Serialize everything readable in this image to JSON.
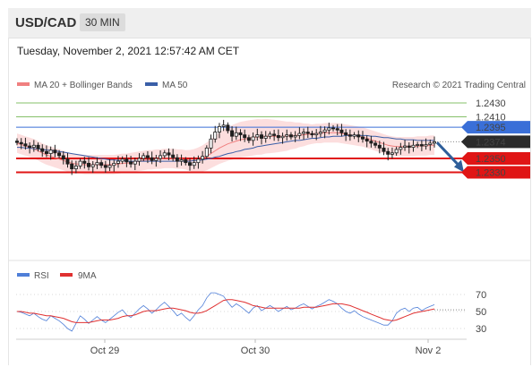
{
  "header": {
    "symbol": "USD/CAD",
    "interval": "30 MIN"
  },
  "timestamp": "Tuesday, November 2, 2021 12:57:42 AM CET",
  "legend": {
    "ma20_bb": "MA 20 + Bollinger Bands",
    "ma50": "MA 50",
    "credit": "Research © 2021 Trading Central",
    "rsi": "RSI",
    "ma9": "9MA"
  },
  "colors": {
    "ma20": "#f08080",
    "ma50": "#3a5fa8",
    "band": "#fbd3d3",
    "resistance_green": "#86c06a",
    "blue_level": "#3a6fd8",
    "support_red": "#e01515",
    "current": "#2b2b2b",
    "candle": "#1f1f1f",
    "rsi": "#4f7fd8",
    "rsi_ma": "#e03030",
    "arrow": "#2f5f9a"
  },
  "chart_data": [
    {
      "type": "candlestick",
      "title": "",
      "ylim": [
        0.2324,
        1.2438
      ],
      "levels": [
        {
          "value": 1.243,
          "label": "1.2430",
          "style": "green-line"
        },
        {
          "value": 1.241,
          "label": "1.2410",
          "style": "green-line"
        },
        {
          "value": 1.2395,
          "label": "1.2395",
          "style": "blue-box"
        },
        {
          "value": 1.2374,
          "label": "1.2374",
          "style": "current-box"
        },
        {
          "value": 1.235,
          "label": "1.2350",
          "style": "red-box"
        },
        {
          "value": 1.233,
          "label": "1.2330",
          "style": "red-box"
        }
      ],
      "close": [
        1.2373,
        1.2371,
        1.2368,
        1.2366,
        1.2369,
        1.2364,
        1.236,
        1.2357,
        1.2362,
        1.2358,
        1.2354,
        1.2349,
        1.2342,
        1.2335,
        1.2339,
        1.2346,
        1.2343,
        1.2338,
        1.2341,
        1.2344,
        1.234,
        1.2337,
        1.234,
        1.2343,
        1.2346,
        1.2349,
        1.2345,
        1.2342,
        1.2346,
        1.235,
        1.2354,
        1.2351,
        1.2347,
        1.235,
        1.2354,
        1.2358,
        1.2355,
        1.2351,
        1.2346,
        1.2348,
        1.2344,
        1.234,
        1.2344,
        1.2349,
        1.2353,
        1.2365,
        1.2378,
        1.2388,
        1.2396,
        1.2398,
        1.239,
        1.2382,
        1.2387,
        1.2384,
        1.238,
        1.2376,
        1.2381,
        1.2384,
        1.2379,
        1.2382,
        1.2385,
        1.2383,
        1.238,
        1.2382,
        1.2384,
        1.2381,
        1.2383,
        1.2386,
        1.2388,
        1.2386,
        1.2384,
        1.2386,
        1.2388,
        1.2391,
        1.2394,
        1.2393,
        1.2391,
        1.2387,
        1.2384,
        1.2382,
        1.2384,
        1.2381,
        1.2378,
        1.2375,
        1.2372,
        1.2369,
        1.2365,
        1.236,
        1.2356,
        1.2358,
        1.2363,
        1.2366,
        1.2368,
        1.2366,
        1.2369,
        1.237,
        1.2368,
        1.237,
        1.2372,
        1.2374
      ],
      "ma20": [
        1.2372,
        1.237,
        1.2368,
        1.2366,
        1.2364,
        1.2361,
        1.2358,
        1.2355,
        1.2353,
        1.2351,
        1.2349,
        1.2347,
        1.2345,
        1.2343,
        1.2342,
        1.2342,
        1.2341,
        1.2341,
        1.2341,
        1.2341,
        1.2341,
        1.2341,
        1.2341,
        1.2341,
        1.2342,
        1.2343,
        1.2343,
        1.2344,
        1.2345,
        1.2346,
        1.2347,
        1.2348,
        1.2348,
        1.2349,
        1.2349,
        1.235,
        1.235,
        1.235,
        1.2349,
        1.2349,
        1.2348,
        1.2347,
        1.2347,
        1.2348,
        1.235,
        1.2353,
        1.2357,
        1.2361,
        1.2365,
        1.2368,
        1.2371,
        1.2373,
        1.2375,
        1.2377,
        1.2378,
        1.2379,
        1.238,
        1.2381,
        1.2381,
        1.2382,
        1.2382,
        1.2382,
        1.2382,
        1.2382,
        1.2382,
        1.2383,
        1.2383,
        1.2384,
        1.2384,
        1.2385,
        1.2385,
        1.2386,
        1.2386,
        1.2387,
        1.2387,
        1.2387,
        1.2387,
        1.2386,
        1.2385,
        1.2384,
        1.2383,
        1.2382,
        1.2381,
        1.2379,
        1.2377,
        1.2375,
        1.2373,
        1.2371,
        1.2369,
        1.2368,
        1.2367,
        1.2367,
        1.2367,
        1.2367,
        1.2367,
        1.2368,
        1.2368,
        1.2368,
        1.2369,
        1.2369
      ],
      "ma50": [
        1.2366,
        1.2366,
        1.2365,
        1.2365,
        1.2364,
        1.2364,
        1.2363,
        1.2362,
        1.2362,
        1.2361,
        1.236,
        1.2359,
        1.2358,
        1.2357,
        1.2356,
        1.2355,
        1.2354,
        1.2353,
        1.2352,
        1.2351,
        1.235,
        1.2349,
        1.2348,
        1.2348,
        1.2347,
        1.2347,
        1.2346,
        1.2346,
        1.2346,
        1.2346,
        1.2346,
        1.2346,
        1.2346,
        1.2346,
        1.2346,
        1.2346,
        1.2346,
        1.2346,
        1.2346,
        1.2346,
        1.2346,
        1.2346,
        1.2347,
        1.2347,
        1.2348,
        1.2349,
        1.235,
        1.2352,
        1.2353,
        1.2355,
        1.2357,
        1.2358,
        1.236,
        1.2361,
        1.2363,
        1.2364,
        1.2365,
        1.2367,
        1.2368,
        1.2369,
        1.237,
        1.2371,
        1.2372,
        1.2373,
        1.2374,
        1.2375,
        1.2376,
        1.2376,
        1.2377,
        1.2378,
        1.2379,
        1.2379,
        1.238,
        1.2381,
        1.2381,
        1.2382,
        1.2382,
        1.2382,
        1.2383,
        1.2383,
        1.2383,
        1.2383,
        1.2383,
        1.2383,
        1.2382,
        1.2382,
        1.2381,
        1.238,
        1.238,
        1.2379,
        1.2378,
        1.2378,
        1.2377,
        1.2377,
        1.2377,
        1.2376,
        1.2376,
        1.2376,
        1.2376,
        1.2376
      ]
    },
    {
      "type": "line",
      "title": "",
      "ylim": [
        20,
        80
      ],
      "ticks": [
        "70",
        "50",
        "30"
      ],
      "tick_values": [
        70,
        50,
        30
      ],
      "series": [
        {
          "name": "RSI",
          "values": [
            50,
            49,
            47,
            45,
            48,
            44,
            41,
            39,
            45,
            42,
            39,
            35,
            30,
            27,
            36,
            45,
            41,
            36,
            40,
            44,
            40,
            37,
            41,
            45,
            49,
            52,
            46,
            43,
            48,
            53,
            57,
            53,
            48,
            52,
            57,
            61,
            56,
            51,
            45,
            48,
            43,
            39,
            45,
            52,
            57,
            66,
            72,
            72,
            70,
            68,
            61,
            55,
            59,
            56,
            52,
            48,
            54,
            57,
            51,
            54,
            57,
            54,
            50,
            53,
            56,
            52,
            54,
            57,
            59,
            56,
            53,
            56,
            58,
            61,
            64,
            62,
            59,
            54,
            50,
            48,
            51,
            47,
            44,
            42,
            40,
            38,
            36,
            34,
            34,
            39,
            48,
            52,
            54,
            50,
            54,
            55,
            51,
            54,
            56,
            58
          ]
        },
        {
          "name": "9MA",
          "values": [
            50,
            50,
            49,
            48,
            48,
            47,
            46,
            45,
            45,
            44,
            43,
            42,
            40,
            38,
            37,
            37,
            37,
            37,
            38,
            39,
            40,
            40,
            40,
            41,
            42,
            44,
            45,
            45,
            46,
            48,
            50,
            51,
            51,
            51,
            52,
            53,
            54,
            54,
            53,
            52,
            51,
            49,
            48,
            48,
            49,
            51,
            54,
            57,
            60,
            63,
            64,
            64,
            63,
            62,
            61,
            59,
            57,
            56,
            55,
            54,
            54,
            54,
            54,
            54,
            54,
            54,
            54,
            54,
            55,
            55,
            55,
            55,
            56,
            57,
            58,
            59,
            59,
            59,
            58,
            57,
            55,
            53,
            51,
            49,
            47,
            45,
            43,
            41,
            40,
            39,
            40,
            42,
            44,
            46,
            48,
            49,
            50,
            51,
            52,
            53
          ]
        }
      ]
    }
  ],
  "xaxis": {
    "labels": [
      "Oct 29",
      "Oct 30",
      "Nov 2"
    ]
  }
}
